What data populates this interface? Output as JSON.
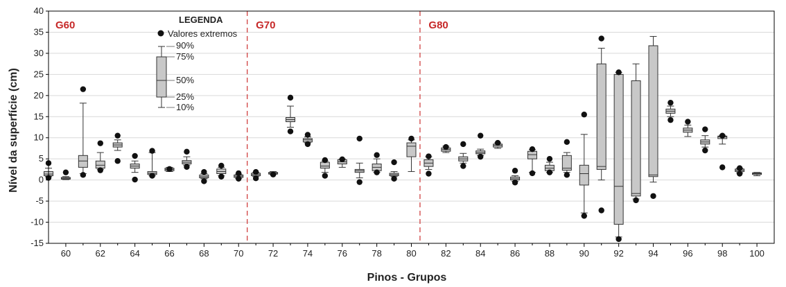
{
  "chart_data": {
    "type": "box",
    "title": "",
    "xlabel": "Pinos - Grupos",
    "ylabel": "Nível da superfície (cm)",
    "ylim": [
      -15,
      40
    ],
    "yticks": [
      -15,
      -10,
      -5,
      0,
      5,
      10,
      15,
      20,
      25,
      30,
      35,
      40
    ],
    "xlim": [
      59,
      101
    ],
    "xticks": [
      60,
      62,
      64,
      66,
      68,
      70,
      72,
      74,
      76,
      78,
      80,
      82,
      84,
      86,
      88,
      90,
      92,
      94,
      96,
      98,
      100
    ],
    "grid": "horizontal",
    "group_separators": [
      70.5,
      80.5
    ],
    "groups": [
      {
        "label": "G60",
        "x": 59.4
      },
      {
        "label": "G70",
        "x": 71.0
      },
      {
        "label": "G80",
        "x": 81.0
      }
    ],
    "legend": {
      "title": "LEGENDA",
      "outlier_label": "Valores extremos",
      "percentile_labels": [
        "90%",
        "75%",
        "50%",
        "25%",
        "10%"
      ],
      "position": "top-left"
    },
    "boxes": [
      {
        "x": 59,
        "p10": 0.8,
        "p25": 1.0,
        "p50": 1.4,
        "p75": 2.0,
        "p90": 2.8,
        "outliers": [
          4.0,
          0.5
        ]
      },
      {
        "x": 60,
        "p10": 0.1,
        "p25": 0.2,
        "p50": 0.4,
        "p75": 0.6,
        "p90": 0.8,
        "outliers": [
          1.8
        ]
      },
      {
        "x": 61,
        "p10": 1.5,
        "p25": 3.0,
        "p50": 4.5,
        "p75": 5.8,
        "p90": 18.2,
        "outliers": [
          21.5,
          1.2
        ]
      },
      {
        "x": 62,
        "p10": 2.5,
        "p25": 2.8,
        "p50": 3.5,
        "p75": 4.5,
        "p90": 6.5,
        "outliers": [
          8.7,
          2.3
        ]
      },
      {
        "x": 63,
        "p10": 7.0,
        "p25": 7.8,
        "p50": 8.3,
        "p75": 8.8,
        "p90": 9.5,
        "outliers": [
          10.5,
          4.5
        ]
      },
      {
        "x": 64,
        "p10": 1.8,
        "p25": 2.8,
        "p50": 3.3,
        "p75": 3.8,
        "p90": 4.5,
        "outliers": [
          5.7,
          0.1
        ]
      },
      {
        "x": 65,
        "p10": 1.0,
        "p25": 1.3,
        "p50": 1.6,
        "p75": 2.0,
        "p90": 6.5,
        "outliers": [
          6.9,
          1.0
        ]
      },
      {
        "x": 66,
        "p10": 2.0,
        "p25": 2.2,
        "p50": 2.5,
        "p75": 2.8,
        "p90": 3.0,
        "outliers": [
          2.6
        ]
      },
      {
        "x": 67,
        "p10": 3.5,
        "p25": 3.8,
        "p50": 4.2,
        "p75": 4.6,
        "p90": 5.5,
        "outliers": [
          6.7,
          3.1
        ]
      },
      {
        "x": 68,
        "p10": 0.3,
        "p25": 0.5,
        "p50": 0.8,
        "p75": 1.2,
        "p90": 1.5,
        "outliers": [
          1.9,
          -0.3
        ]
      },
      {
        "x": 69,
        "p10": 1.0,
        "p25": 1.5,
        "p50": 2.0,
        "p75": 2.6,
        "p90": 3.0,
        "outliers": [
          3.4,
          0.8
        ]
      },
      {
        "x": 70,
        "p10": 0.4,
        "p25": 0.6,
        "p50": 0.9,
        "p75": 1.2,
        "p90": 1.4,
        "outliers": [
          1.6,
          0.3
        ]
      },
      {
        "x": 71,
        "p10": 0.8,
        "p25": 1.0,
        "p50": 1.3,
        "p75": 1.6,
        "p90": 1.8,
        "outliers": [
          1.9,
          0.4
        ]
      },
      {
        "x": 72,
        "p10": 1.3,
        "p25": 1.4,
        "p50": 1.6,
        "p75": 1.8,
        "p90": 2.0,
        "outliers": [
          1.3
        ]
      },
      {
        "x": 73,
        "p10": 12.5,
        "p25": 13.8,
        "p50": 14.3,
        "p75": 14.8,
        "p90": 17.5,
        "outliers": [
          19.5,
          11.5
        ]
      },
      {
        "x": 74,
        "p10": 8.8,
        "p25": 9.0,
        "p50": 9.5,
        "p75": 9.8,
        "p90": 10.2,
        "outliers": [
          10.7,
          8.5
        ]
      },
      {
        "x": 75,
        "p10": 1.8,
        "p25": 2.8,
        "p50": 3.3,
        "p75": 4.2,
        "p90": 4.5,
        "outliers": [
          4.7,
          1.0
        ]
      },
      {
        "x": 76,
        "p10": 3.0,
        "p25": 3.8,
        "p50": 4.3,
        "p75": 4.8,
        "p90": 5.0,
        "outliers": [
          4.9
        ]
      },
      {
        "x": 77,
        "p10": 0.5,
        "p25": 1.8,
        "p50": 2.2,
        "p75": 2.5,
        "p90": 4.0,
        "outliers": [
          9.8,
          -0.5
        ]
      },
      {
        "x": 78,
        "p10": 1.8,
        "p25": 2.2,
        "p50": 3.0,
        "p75": 3.8,
        "p90": 5.0,
        "outliers": [
          5.9,
          1.8
        ]
      },
      {
        "x": 79,
        "p10": 0.8,
        "p25": 1.0,
        "p50": 1.3,
        "p75": 1.6,
        "p90": 2.0,
        "outliers": [
          4.2,
          0.3
        ]
      },
      {
        "x": 80,
        "p10": 2.0,
        "p25": 5.5,
        "p50": 8.0,
        "p75": 8.8,
        "p90": 9.5,
        "outliers": [
          9.8
        ]
      },
      {
        "x": 81,
        "p10": 2.5,
        "p25": 3.2,
        "p50": 4.0,
        "p75": 4.8,
        "p90": 5.5,
        "outliers": [
          5.6,
          1.5
        ]
      },
      {
        "x": 82,
        "p10": 6.5,
        "p25": 6.8,
        "p50": 7.2,
        "p75": 7.6,
        "p90": 8.0,
        "outliers": [
          7.8
        ]
      },
      {
        "x": 83,
        "p10": 4.0,
        "p25": 4.5,
        "p50": 5.0,
        "p75": 5.5,
        "p90": 6.3,
        "outliers": [
          8.5,
          3.3
        ]
      },
      {
        "x": 84,
        "p10": 5.8,
        "p25": 6.2,
        "p50": 6.5,
        "p75": 6.9,
        "p90": 7.3,
        "outliers": [
          10.5,
          5.5
        ]
      },
      {
        "x": 85,
        "p10": 7.5,
        "p25": 7.8,
        "p50": 8.2,
        "p75": 8.5,
        "p90": 8.8,
        "outliers": [
          8.8
        ]
      },
      {
        "x": 86,
        "p10": -0.3,
        "p25": 0.0,
        "p50": 0.3,
        "p75": 0.7,
        "p90": 1.0,
        "outliers": [
          2.2,
          -0.6
        ]
      },
      {
        "x": 87,
        "p10": 1.8,
        "p25": 5.0,
        "p50": 6.0,
        "p75": 6.8,
        "p90": 7.2,
        "outliers": [
          7.3,
          1.6
        ]
      },
      {
        "x": 88,
        "p10": 1.8,
        "p25": 2.2,
        "p50": 2.8,
        "p75": 3.5,
        "p90": 4.2,
        "outliers": [
          5.0,
          1.8
        ]
      },
      {
        "x": 89,
        "p10": 1.8,
        "p25": 2.3,
        "p50": 2.8,
        "p75": 5.8,
        "p90": 6.5,
        "outliers": [
          9.0,
          1.2
        ]
      },
      {
        "x": 90,
        "p10": -7.8,
        "p25": -1.2,
        "p50": 1.5,
        "p75": 3.5,
        "p90": 10.8,
        "outliers": [
          15.5,
          -8.5
        ]
      },
      {
        "x": 91,
        "p10": 0.0,
        "p25": 2.5,
        "p50": 3.2,
        "p75": 27.5,
        "p90": 31.2,
        "outliers": [
          33.5,
          -7.2
        ]
      },
      {
        "x": 92,
        "p10": -13.5,
        "p25": -10.5,
        "p50": -1.5,
        "p75": 25.0,
        "p90": 25.5,
        "outliers": [
          25.5,
          -14.0
        ]
      },
      {
        "x": 93,
        "p10": -4.5,
        "p25": -3.8,
        "p50": -3.2,
        "p75": 23.5,
        "p90": 27.5,
        "outliers": [
          -4.8
        ]
      },
      {
        "x": 94,
        "p10": -0.5,
        "p25": 0.8,
        "p50": 1.2,
        "p75": 31.8,
        "p90": 34.0,
        "outliers": [
          -3.8
        ]
      },
      {
        "x": 95,
        "p10": 15.0,
        "p25": 15.8,
        "p50": 16.3,
        "p75": 16.8,
        "p90": 17.5,
        "outliers": [
          18.3,
          14.2
        ]
      },
      {
        "x": 96,
        "p10": 10.3,
        "p25": 11.3,
        "p50": 11.8,
        "p75": 12.3,
        "p90": 13.0,
        "outliers": [
          13.8
        ]
      },
      {
        "x": 97,
        "p10": 7.8,
        "p25": 8.5,
        "p50": 9.0,
        "p75": 9.5,
        "p90": 10.5,
        "outliers": [
          12.0,
          7.0
        ]
      },
      {
        "x": 98,
        "p10": 8.5,
        "p25": 9.8,
        "p50": 10.2,
        "p75": 10.4,
        "p90": 10.6,
        "outliers": [
          10.5,
          3.0
        ]
      },
      {
        "x": 99,
        "p10": 1.7,
        "p25": 2.0,
        "p50": 2.3,
        "p75": 2.6,
        "p90": 2.8,
        "outliers": [
          2.8,
          1.5
        ]
      },
      {
        "x": 100,
        "p10": 1.0,
        "p25": 1.3,
        "p50": 1.5,
        "p75": 1.7,
        "p90": 1.8,
        "outliers": []
      }
    ]
  },
  "colors": {
    "box_fill": "#c8c8c8",
    "box_stroke": "#333333",
    "grid": "#d9d9d9",
    "separator": "#d04040",
    "group_label": "#c62828",
    "outlier": "#111111"
  }
}
